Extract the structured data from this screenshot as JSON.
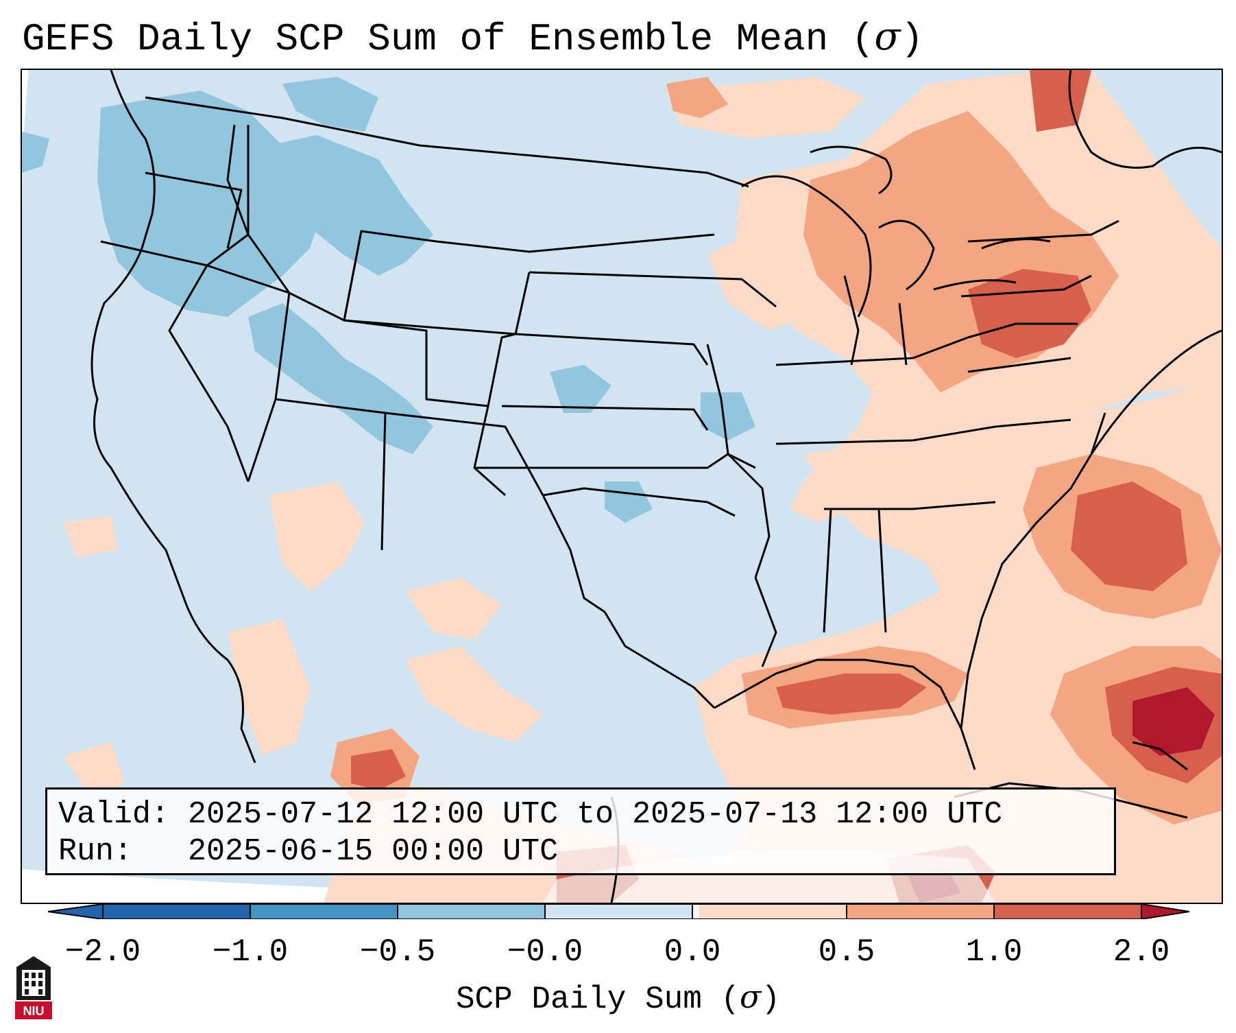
{
  "title": {
    "text": "GEFS Daily SCP Sum of Ensemble Mean (",
    "sigma": "σ",
    "close": ")"
  },
  "info": {
    "valid_label": "Valid:",
    "valid_value": "2025-07-12 12:00 UTC to 2025-07-13 12:00 UTC",
    "run_label": "Run:",
    "run_value": "2025-06-15 00:00 UTC"
  },
  "colorbar": {
    "label_text": "SCP Daily Sum (",
    "label_sigma": "σ",
    "label_close": ")",
    "ticks": [
      "−2.0",
      "−1.0",
      "−0.5",
      "−0.0",
      "0.0",
      "0.5",
      "1.0",
      "2.0"
    ],
    "colors": [
      "#2166ac",
      "#4393c3",
      "#92c5de",
      "#d1e5f0",
      "#f7f7f7",
      "#fddbc7",
      "#f4a582",
      "#d6604d",
      "#b2182b"
    ]
  },
  "map": {
    "background_color": "#d1e5f0",
    "outside_color": "#ffffff",
    "region_colors": {
      "light_blue": "#d1e5f0",
      "mid_blue": "#92c5de",
      "light_red": "#fddbc7",
      "mid_red": "#f4a582",
      "red": "#d6604d",
      "dark_red": "#b2182b",
      "neutral": "#f7f7f7"
    }
  },
  "logo": {
    "text": "NIU",
    "icon": "niu-logo-icon"
  }
}
